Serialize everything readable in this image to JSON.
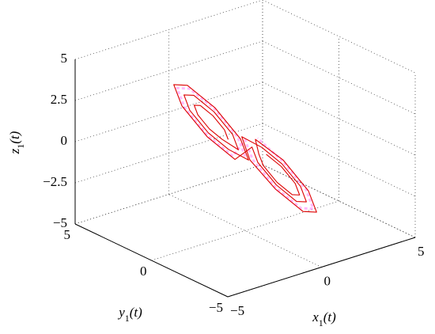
{
  "chart_data": {
    "type": "line3d",
    "xlabel": "x1(t)",
    "ylabel": "y1(t)",
    "zlabel": "z1(t)",
    "xlim": [
      -5,
      5
    ],
    "ylim": [
      -5,
      5
    ],
    "zlim": [
      -5,
      5
    ],
    "xticks": [
      {
        "value": -5,
        "label": "−5"
      },
      0,
      5
    ],
    "yticks": [
      {
        "value": -5,
        "label": "−5"
      },
      0,
      5
    ],
    "zticks": [
      {
        "value": -5,
        "label": "−5"
      },
      {
        "value": -2.5,
        "label": "−2.5"
      },
      0,
      2.5,
      5
    ],
    "grid": true,
    "series": [
      {
        "color": "#ff66ff",
        "dashed": true,
        "x": [
          0,
          0.42,
          0,
          -1,
          -2,
          -2.42,
          -2,
          -1,
          0,
          -0.42,
          0,
          1,
          2,
          2.42,
          2,
          1
        ],
        "y": [
          0,
          1,
          2,
          2.42,
          2,
          1,
          0,
          -0.42,
          0,
          -1,
          -2,
          -2.42,
          -2,
          -1,
          0,
          0.42
        ],
        "z": [
          -0.5,
          0.08,
          1.5,
          2.92,
          3.5,
          2.92,
          1.5,
          0.08,
          0.5,
          -0.08,
          -1.5,
          -2.92,
          -3.5,
          -2.92,
          -1.5,
          0.08
        ]
      },
      {
        "color": "#dd0000",
        "dashed": false,
        "x": [
          -0.5,
          -0.29,
          -0.5,
          -1,
          -1.5,
          -1.71,
          -1.5,
          -1,
          -0.2,
          0.14,
          -0.2,
          -1,
          -1.8,
          -2.14,
          -1.8,
          -1,
          0.1,
          0.56,
          0.1,
          -1,
          -2.1,
          -2.56,
          -2.1,
          -1,
          0.2,
          -0.14,
          0.2,
          1,
          1.8,
          2.14,
          1.8,
          1,
          -0.1,
          -0.56,
          -0.1,
          1,
          2.1,
          2.56,
          2.1,
          1,
          0.4,
          0.15,
          0.4,
          1,
          1.6,
          1.85,
          1.6,
          1
        ],
        "y": [
          0.5,
          1,
          1.5,
          1.71,
          1.5,
          1,
          0.5,
          0.29,
          0.2,
          1,
          1.8,
          2.14,
          1.8,
          1,
          0.2,
          -0.14,
          -0.1,
          1,
          2.1,
          2.56,
          2.1,
          1,
          -0.1,
          -0.56,
          -0.2,
          -1,
          -1.8,
          -2.14,
          -1.8,
          -1,
          -0.2,
          0.14,
          0.1,
          -1,
          -2.1,
          -2.56,
          -2.1,
          -1,
          0.1,
          0.56,
          -0.4,
          -1,
          -1.6,
          -1.85,
          -1.6,
          -1,
          -0.4,
          -0.15
        ],
        "z": [
          0.5,
          0.79,
          1.5,
          2.21,
          2.5,
          2.21,
          1.5,
          0.79,
          -0.1,
          0.36,
          1.5,
          2.64,
          3.1,
          2.64,
          1.5,
          0.36,
          -0.7,
          -0.06,
          1.5,
          3.06,
          3.7,
          3.06,
          1.5,
          -0.06,
          0.1,
          -0.36,
          -1.5,
          -2.64,
          -3.1,
          -2.64,
          -1.5,
          -0.36,
          0.7,
          -0.06,
          -1.5,
          -3.06,
          -3.7,
          -3.06,
          -1.5,
          -0.06,
          -0.3,
          -0.65,
          -1.5,
          -2.35,
          -2.7,
          -2.35,
          -1.5,
          -0.65
        ]
      }
    ]
  }
}
